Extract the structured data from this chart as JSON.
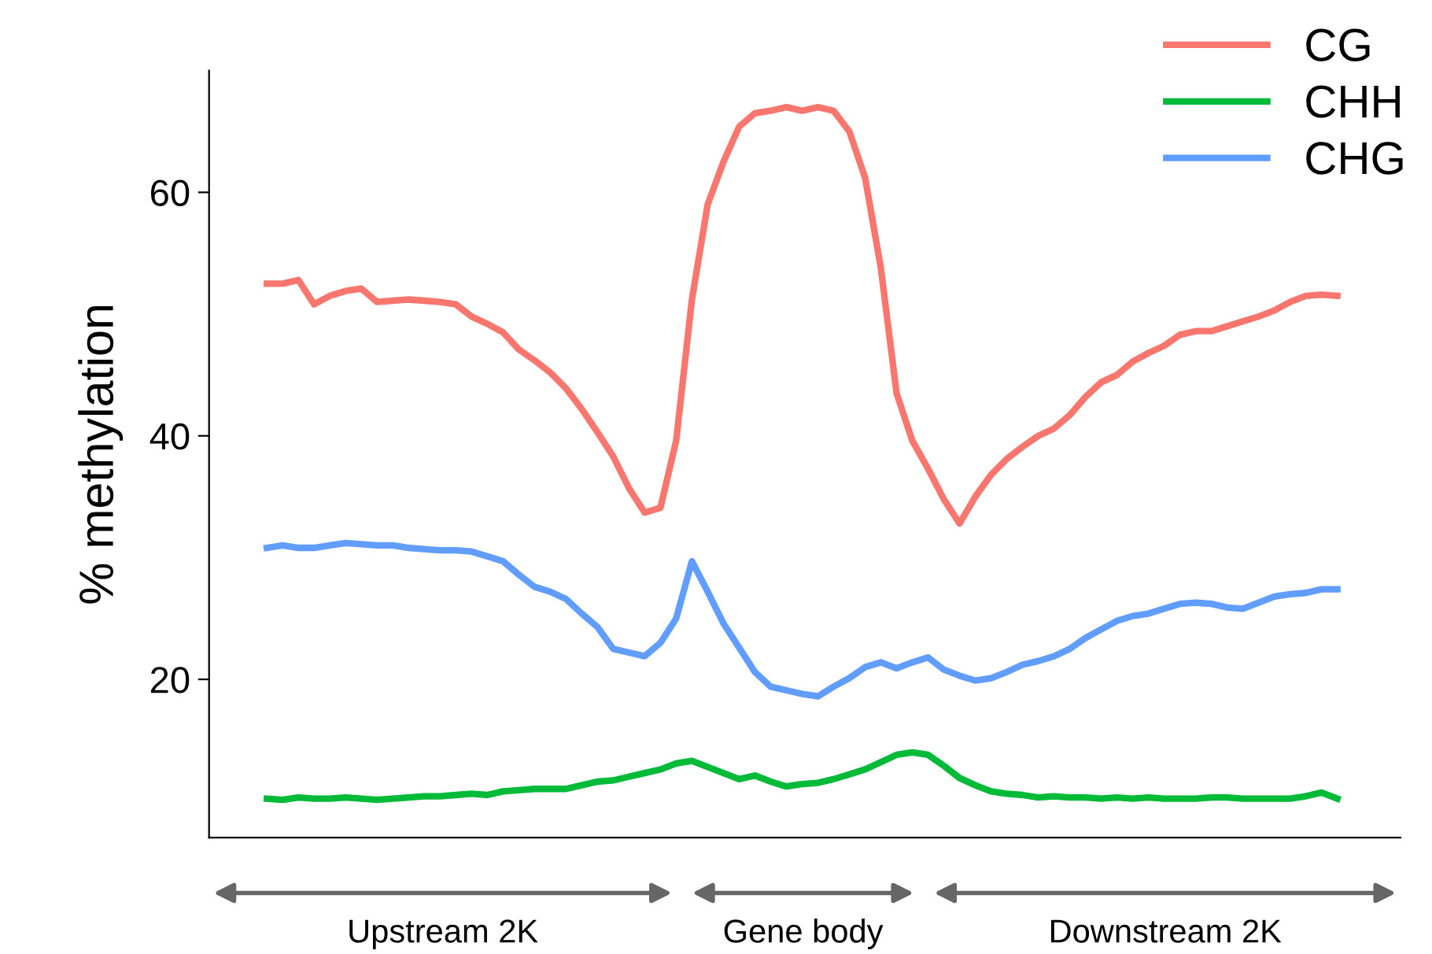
{
  "chart_data": {
    "type": "line",
    "ylabel": "% methylation",
    "categories": [
      null,
      null,
      null,
      null,
      null,
      null,
      null,
      null,
      null,
      null,
      null,
      null,
      null,
      null,
      null,
      null,
      null,
      null,
      null,
      null,
      null,
      null,
      null,
      null,
      null,
      null,
      null,
      null,
      null,
      null,
      null,
      null,
      null,
      null,
      null,
      null,
      null,
      null,
      null,
      null,
      null,
      null,
      null,
      null,
      null,
      null,
      null,
      null,
      null,
      null,
      null,
      null,
      null,
      null,
      null,
      null,
      null,
      null,
      null,
      null,
      null,
      null,
      null,
      null,
      null,
      null,
      null,
      null,
      null
    ],
    "series": [
      {
        "name": "CG",
        "color": "#f8766d",
        "values": [
          52.5,
          52.5,
          52.8,
          50.8,
          51.5,
          51.9,
          52.1,
          51.0,
          51.1,
          51.2,
          51.1,
          51.0,
          50.8,
          49.8,
          49.2,
          48.5,
          47.1,
          46.2,
          45.2,
          43.9,
          42.2,
          40.3,
          38.3,
          35.7,
          33.7,
          34.1,
          39.6,
          51.2,
          59.0,
          62.5,
          65.4,
          66.5,
          66.7,
          67.0,
          66.7,
          67.0,
          66.7,
          65.0,
          61.2,
          53.8,
          43.5,
          39.6,
          37.3,
          34.8,
          32.8,
          35.0,
          36.8,
          38.1,
          39.1,
          40.0,
          40.6,
          41.7,
          43.2,
          44.4,
          45.0,
          46.1,
          46.8,
          47.4,
          48.3,
          48.6,
          48.6,
          49.0,
          49.4,
          49.8,
          50.3,
          51.0,
          51.5,
          51.6,
          51.5
        ]
      },
      {
        "name": "CHH",
        "color": "#00ba38",
        "values": [
          10.2,
          10.1,
          10.3,
          10.2,
          10.2,
          10.3,
          10.2,
          10.1,
          10.2,
          10.3,
          10.4,
          10.4,
          10.5,
          10.6,
          10.5,
          10.8,
          10.9,
          11.0,
          11.0,
          11.0,
          11.3,
          11.6,
          11.7,
          12.0,
          12.3,
          12.6,
          13.1,
          13.3,
          12.8,
          12.3,
          11.8,
          12.1,
          11.6,
          11.2,
          11.4,
          11.5,
          11.8,
          12.2,
          12.6,
          13.2,
          13.8,
          14.0,
          13.8,
          12.9,
          11.9,
          11.3,
          10.8,
          10.6,
          10.5,
          10.3,
          10.4,
          10.3,
          10.3,
          10.2,
          10.3,
          10.2,
          10.3,
          10.2,
          10.2,
          10.2,
          10.3,
          10.3,
          10.2,
          10.2,
          10.2,
          10.2,
          10.4,
          10.7,
          10.2
        ]
      },
      {
        "name": "CHG",
        "color": "#619cff",
        "values": [
          30.8,
          31.0,
          30.8,
          30.8,
          31.0,
          31.2,
          31.1,
          31.0,
          31.0,
          30.8,
          30.7,
          30.6,
          30.6,
          30.5,
          30.1,
          29.7,
          28.6,
          27.6,
          27.2,
          26.6,
          25.4,
          24.3,
          22.5,
          22.2,
          21.9,
          23.0,
          25.0,
          29.7,
          27.2,
          24.6,
          22.6,
          20.6,
          19.4,
          19.1,
          18.8,
          18.6,
          19.4,
          20.1,
          21.0,
          21.4,
          20.9,
          21.4,
          21.8,
          20.8,
          20.3,
          19.9,
          20.1,
          20.6,
          21.2,
          21.5,
          21.9,
          22.5,
          23.4,
          24.1,
          24.8,
          25.2,
          25.4,
          25.8,
          26.2,
          26.3,
          26.2,
          25.9,
          25.8,
          26.3,
          26.8,
          27.0,
          27.1,
          27.4,
          27.4
        ]
      }
    ],
    "ylim": [
      7,
      70
    ],
    "yticks": [
      20,
      40,
      60
    ],
    "grid": false,
    "legend": "top right",
    "line_style": "solid",
    "marker": "none",
    "annotations": [
      "Upstream 2K",
      "Gene body",
      "Downstream 2K"
    ]
  }
}
